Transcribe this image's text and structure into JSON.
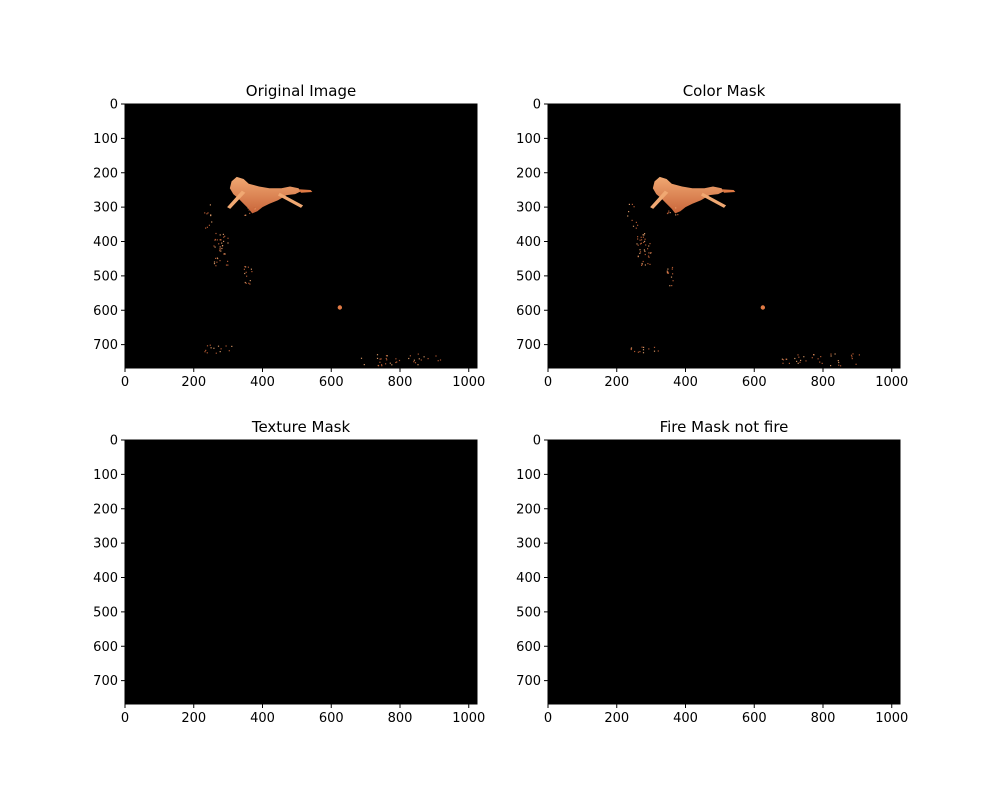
{
  "figure": {
    "background": "#ffffff",
    "layout": "2x2 grid of image panels",
    "image_background": "#000000",
    "fire_colors": [
      "#e07a45",
      "#f0a872",
      "#c9653a"
    ]
  },
  "chart_data": [
    {
      "type": "image",
      "title": "Original Image",
      "xlim": [
        0,
        1024
      ],
      "ylim": [
        768,
        0
      ],
      "xticks": [
        0,
        200,
        400,
        600,
        800,
        1000
      ],
      "yticks": [
        0,
        100,
        200,
        300,
        400,
        500,
        600,
        700
      ],
      "xtick_labels": [
        "0",
        "200",
        "400",
        "600",
        "800",
        "1000"
      ],
      "ytick_labels": [
        "0",
        "100",
        "200",
        "300",
        "400",
        "500",
        "600",
        "700"
      ],
      "content": "fire"
    },
    {
      "type": "image",
      "title": "Color Mask",
      "xlim": [
        0,
        1024
      ],
      "ylim": [
        768,
        0
      ],
      "xticks": [
        0,
        200,
        400,
        600,
        800,
        1000
      ],
      "yticks": [
        0,
        100,
        200,
        300,
        400,
        500,
        600,
        700
      ],
      "xtick_labels": [
        "0",
        "200",
        "400",
        "600",
        "800",
        "1000"
      ],
      "ytick_labels": [
        "0",
        "100",
        "200",
        "300",
        "400",
        "500",
        "600",
        "700"
      ],
      "content": "fire"
    },
    {
      "type": "image",
      "title": "Texture Mask",
      "xlim": [
        0,
        1024
      ],
      "ylim": [
        768,
        0
      ],
      "xticks": [
        0,
        200,
        400,
        600,
        800,
        1000
      ],
      "yticks": [
        0,
        100,
        200,
        300,
        400,
        500,
        600,
        700
      ],
      "xtick_labels": [
        "0",
        "200",
        "400",
        "600",
        "800",
        "1000"
      ],
      "ytick_labels": [
        "0",
        "100",
        "200",
        "300",
        "400",
        "500",
        "600",
        "700"
      ],
      "content": "empty"
    },
    {
      "type": "image",
      "title": "Fire Mask not fire",
      "xlim": [
        0,
        1024
      ],
      "ylim": [
        768,
        0
      ],
      "xticks": [
        0,
        200,
        400,
        600,
        800,
        1000
      ],
      "yticks": [
        0,
        100,
        200,
        300,
        400,
        500,
        600,
        700
      ],
      "xtick_labels": [
        "0",
        "200",
        "400",
        "600",
        "800",
        "1000"
      ],
      "ytick_labels": [
        "0",
        "100",
        "200",
        "300",
        "400",
        "500",
        "600",
        "700"
      ],
      "content": "empty"
    }
  ]
}
